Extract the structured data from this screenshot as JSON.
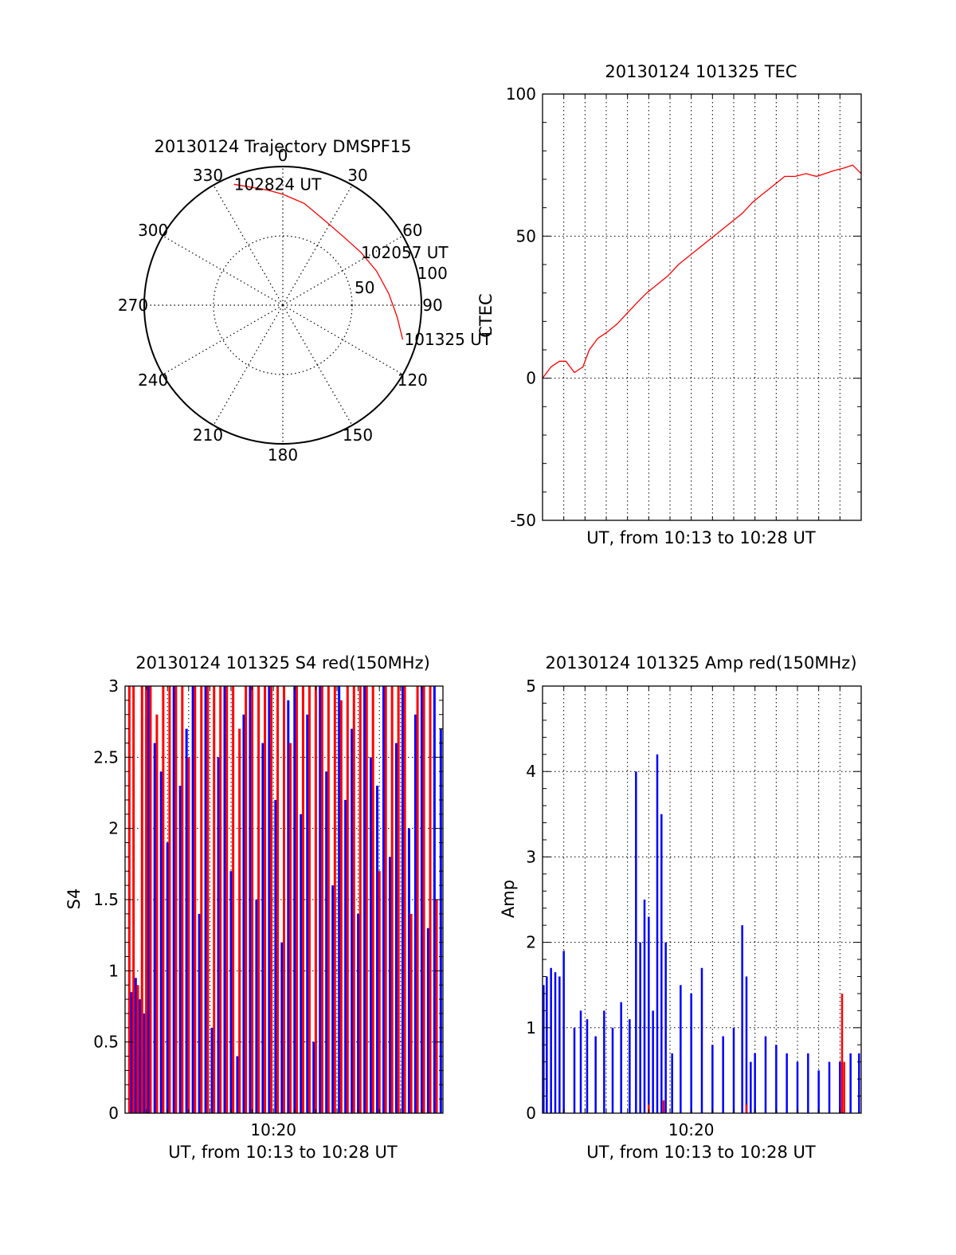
{
  "chart_data": [
    {
      "type": "polar",
      "title": "20130124 Trajectory DMSPF15",
      "angle_ticks": [
        "0",
        "30",
        "60",
        "90",
        "120",
        "150",
        "180",
        "210",
        "240",
        "270",
        "300",
        "330"
      ],
      "radial_ticks": [
        "50",
        "100"
      ],
      "rlim": [
        0,
        100
      ],
      "grid": true,
      "series": [
        {
          "color": "#ff0000",
          "points": [
            {
              "az": 106,
              "r": 90
            },
            {
              "az": 96,
              "r": 83
            },
            {
              "az": 84,
              "r": 77
            },
            {
              "az": 70,
              "r": 72
            },
            {
              "az": 56,
              "r": 68
            },
            {
              "az": 42,
              "r": 66
            },
            {
              "az": 27,
              "r": 68
            },
            {
              "az": 12,
              "r": 75
            },
            {
              "az": 0,
              "r": 80
            },
            {
              "az": 352,
              "r": 84
            },
            {
              "az": 338,
              "r": 94
            }
          ]
        }
      ],
      "annotations": [
        {
          "text": "102824 UT",
          "az": 338,
          "r": 94
        },
        {
          "text": "102057 UT",
          "az": 56,
          "r": 68
        },
        {
          "text": "101325 UT",
          "az": 106,
          "r": 90
        }
      ]
    },
    {
      "type": "line",
      "title": "20130124 101325 TEC",
      "xlabel": "UT, from 10:13 to 10:28 UT",
      "ylabel": "CTEC",
      "xlim": [
        0,
        15
      ],
      "ylim": [
        -50,
        100
      ],
      "yticks": [
        "-50",
        "0",
        "50",
        "100"
      ],
      "grid": true,
      "series": [
        {
          "color": "#ff0000",
          "x": [
            0,
            0.4,
            0.8,
            1.1,
            1.5,
            1.9,
            2.2,
            2.6,
            3.0,
            3.5,
            4.0,
            4.5,
            4.9,
            5.4,
            5.9,
            6.4,
            6.9,
            7.4,
            7.9,
            8.4,
            8.9,
            9.4,
            9.9,
            10.4,
            10.9,
            11.4,
            11.9,
            12.4,
            12.9,
            13.3,
            13.7,
            14.2,
            14.6,
            15.0
          ],
          "y": [
            0,
            4,
            6,
            6,
            2,
            4,
            10,
            14,
            16,
            19,
            23,
            27,
            30,
            33,
            36,
            40,
            43,
            46,
            49,
            52,
            55,
            58,
            62,
            65,
            68,
            71,
            71,
            72,
            71,
            72,
            73,
            74,
            75,
            72
          ]
        }
      ]
    },
    {
      "type": "bar",
      "title": "20130124 101325 S4 red(150MHz)",
      "xlabel": "UT, from 10:13 to 10:28 UT",
      "ylabel": "S4",
      "xlim": [
        0,
        15
      ],
      "ylim": [
        0,
        3
      ],
      "xticks": [
        {
          "x": 7,
          "label": "10:20"
        }
      ],
      "yticks": [
        "0",
        "0.5",
        "1",
        "1.5",
        "2",
        "2.5",
        "3"
      ],
      "grid": true,
      "series": [
        {
          "color": "#0000ff",
          "x": [
            0.3,
            0.5,
            0.7,
            0.9,
            1.1,
            1.4,
            1.7,
            2.0,
            2.3,
            2.6,
            2.9,
            3.2,
            3.5,
            3.8,
            4.1,
            4.4,
            4.7,
            5.0,
            5.3,
            5.6,
            5.9,
            6.2,
            6.5,
            6.8,
            7.1,
            7.4,
            7.7,
            8.0,
            8.3,
            8.6,
            8.9,
            9.2,
            9.5,
            9.8,
            10.1,
            10.4,
            10.7,
            11.0,
            11.3,
            11.6,
            11.9,
            12.2,
            12.5,
            12.8,
            13.1,
            13.4,
            13.7,
            14.0,
            14.3,
            14.6,
            14.9
          ],
          "y": [
            0.85,
            0.95,
            0.8,
            0.7,
            3.0,
            2.6,
            2.4,
            1.9,
            3.0,
            2.3,
            2.7,
            3.0,
            1.4,
            3.0,
            0.6,
            2.5,
            3.0,
            1.7,
            0.4,
            2.8,
            3.0,
            1.5,
            2.6,
            3.0,
            2.2,
            1.2,
            2.9,
            3.0,
            2.1,
            2.8,
            0.5,
            3.0,
            2.4,
            1.6,
            3.0,
            2.2,
            2.7,
            1.4,
            3.0,
            2.5,
            2.3,
            3.0,
            1.8,
            2.6,
            3.0,
            2.0,
            2.8,
            3.0,
            1.3,
            3.0,
            2.7
          ]
        },
        {
          "color": "#ff0000",
          "x": [
            0.2,
            0.4,
            0.6,
            0.8,
            1.0,
            1.2,
            1.5,
            1.8,
            2.1,
            2.4,
            2.7,
            3.0,
            3.3,
            3.6,
            3.9,
            4.2,
            4.5,
            4.8,
            5.1,
            5.4,
            5.7,
            6.0,
            6.3,
            6.6,
            6.9,
            7.2,
            7.5,
            7.8,
            8.1,
            8.4,
            8.7,
            9.0,
            9.3,
            9.6,
            9.9,
            10.2,
            10.5,
            10.8,
            11.1,
            11.4,
            11.7,
            12.0,
            12.3,
            12.6,
            12.9,
            13.2,
            13.5,
            13.8,
            14.1,
            14.4,
            14.7
          ],
          "y": [
            3.0,
            3.0,
            0.9,
            3.0,
            3.0,
            3.0,
            2.8,
            3.0,
            3.0,
            3.0,
            3.0,
            2.5,
            3.0,
            3.0,
            3.0,
            3.0,
            3.0,
            3.0,
            3.0,
            2.7,
            3.0,
            3.0,
            3.0,
            3.0,
            3.0,
            3.0,
            3.0,
            2.6,
            3.0,
            3.0,
            3.0,
            3.0,
            3.0,
            3.0,
            3.0,
            2.9,
            3.0,
            3.0,
            3.0,
            3.0,
            3.0,
            1.7,
            3.0,
            3.0,
            3.0,
            3.0,
            1.4,
            3.0,
            3.0,
            3.0,
            1.5
          ]
        }
      ]
    },
    {
      "type": "bar",
      "title": "20130124 101325 Amp red(150MHz)",
      "xlabel": "UT, from 10:13 to 10:28 UT",
      "ylabel": "Amp",
      "xlim": [
        0,
        15
      ],
      "ylim": [
        0,
        5
      ],
      "xticks": [
        {
          "x": 7,
          "label": "10:20"
        }
      ],
      "yticks": [
        "0",
        "1",
        "2",
        "3",
        "4",
        "5"
      ],
      "grid": true,
      "series": [
        {
          "color": "#0000ff",
          "x": [
            0.05,
            0.2,
            0.4,
            0.6,
            0.8,
            1.0,
            1.5,
            1.8,
            2.1,
            2.5,
            2.9,
            3.3,
            3.7,
            4.1,
            4.4,
            4.6,
            4.8,
            5.0,
            5.2,
            5.4,
            5.6,
            5.8,
            6.1,
            6.5,
            7.0,
            7.5,
            8.0,
            8.5,
            9.0,
            9.4,
            9.6,
            9.8,
            10.0,
            10.5,
            11.0,
            11.5,
            12.0,
            12.5,
            13.0,
            13.5,
            14.0,
            14.5,
            14.9
          ],
          "y": [
            1.5,
            1.6,
            1.7,
            1.65,
            1.6,
            1.9,
            1.0,
            1.2,
            1.1,
            0.9,
            1.2,
            1.0,
            1.3,
            1.1,
            4.0,
            2.0,
            2.5,
            2.3,
            1.2,
            4.2,
            3.5,
            2.0,
            0.7,
            1.5,
            1.4,
            1.7,
            0.8,
            0.9,
            1.0,
            2.2,
            1.6,
            0.6,
            0.7,
            0.9,
            0.8,
            0.7,
            0.6,
            0.7,
            0.5,
            0.6,
            0.6,
            0.7,
            0.7
          ]
        },
        {
          "color": "#ff0000",
          "x": [
            5.0,
            5.7,
            9.6,
            14.1,
            14.2
          ],
          "y": [
            0.1,
            0.15,
            0.1,
            1.4,
            0.6
          ]
        }
      ]
    }
  ]
}
